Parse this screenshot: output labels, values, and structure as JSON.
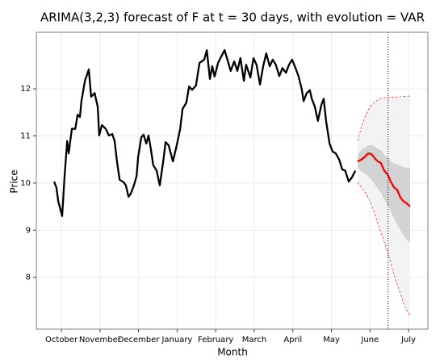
{
  "chart_data": {
    "type": "line",
    "title": "ARIMA(3,2,3) forecast of F at t = 30 days, with evolution = VAR",
    "xlabel": "Month",
    "ylabel": "Price",
    "xlim": [
      0.35,
      10.5
    ],
    "ylim": [
      6.9,
      13.2
    ],
    "xticks": [
      {
        "value": 1,
        "label": "October"
      },
      {
        "value": 2,
        "label": "November"
      },
      {
        "value": 3,
        "label": "December"
      },
      {
        "value": 4,
        "label": "January"
      },
      {
        "value": 5,
        "label": "February"
      },
      {
        "value": 6,
        "label": "March"
      },
      {
        "value": 7,
        "label": "April"
      },
      {
        "value": 8,
        "label": "May"
      },
      {
        "value": 9,
        "label": "June"
      },
      {
        "value": 10,
        "label": "July"
      }
    ],
    "yticks": [
      8,
      9,
      10,
      11,
      12
    ],
    "grid": true,
    "vline": 9.47,
    "series": [
      {
        "color": "#000000",
        "x": [
          0.81,
          0.87,
          0.92,
          1.02,
          1.08,
          1.15,
          1.19,
          1.27,
          1.36,
          1.42,
          1.48,
          1.52,
          1.61,
          1.71,
          1.77,
          1.86,
          1.94,
          1.98,
          2.05,
          2.15,
          2.23,
          2.32,
          2.38,
          2.44,
          2.51,
          2.61,
          2.67,
          2.74,
          2.8,
          2.88,
          2.95,
          2.99,
          3.07,
          3.13,
          3.2,
          3.26,
          3.32,
          3.38,
          3.47,
          3.55,
          3.64,
          3.7,
          3.78,
          3.89,
          3.99,
          4.08,
          4.14,
          4.24,
          4.31,
          4.39,
          4.49,
          4.58,
          4.7,
          4.77,
          4.85,
          4.91,
          4.97,
          5.06,
          5.14,
          5.23,
          5.31,
          5.39,
          5.48,
          5.56,
          5.64,
          5.73,
          5.79,
          5.9,
          5.98,
          6.06,
          6.15,
          6.23,
          6.31,
          6.4,
          6.48,
          6.56,
          6.65,
          6.73,
          6.82,
          6.9,
          6.98,
          7.07,
          7.15,
          7.23,
          7.28,
          7.36,
          7.44,
          7.49,
          7.57,
          7.65,
          7.74,
          7.8,
          7.86,
          7.95,
          8.03,
          8.11,
          8.2,
          8.28,
          8.36,
          8.45,
          8.53,
          8.62
        ],
        "values": [
          10.03,
          9.91,
          9.61,
          9.3,
          10.12,
          10.89,
          10.63,
          11.15,
          11.15,
          11.45,
          11.4,
          11.74,
          12.17,
          12.41,
          11.83,
          11.91,
          11.62,
          11.01,
          11.23,
          11.15,
          11.01,
          11.04,
          10.89,
          10.46,
          10.07,
          10.02,
          9.95,
          9.71,
          9.78,
          9.95,
          10.15,
          10.55,
          10.97,
          11.03,
          10.84,
          11.01,
          10.72,
          10.38,
          10.26,
          9.95,
          10.46,
          10.87,
          10.8,
          10.46,
          10.8,
          11.15,
          11.57,
          11.71,
          12.05,
          11.98,
          12.07,
          12.55,
          12.62,
          12.82,
          12.21,
          12.48,
          12.26,
          12.55,
          12.68,
          12.82,
          12.6,
          12.38,
          12.58,
          12.38,
          12.65,
          12.17,
          12.51,
          12.24,
          12.65,
          12.51,
          12.09,
          12.48,
          12.75,
          12.48,
          12.62,
          12.51,
          12.27,
          12.44,
          12.34,
          12.51,
          12.62,
          12.44,
          12.26,
          12.0,
          11.74,
          11.91,
          11.97,
          11.79,
          11.62,
          11.32,
          11.66,
          11.79,
          11.32,
          10.84,
          10.67,
          10.63,
          10.5,
          10.29,
          10.26,
          10.03,
          10.12,
          10.26
        ]
      },
      {
        "color": "#ff0000",
        "x": [
          8.68,
          8.78,
          8.87,
          8.95,
          9.03,
          9.12,
          9.2,
          9.28,
          9.37,
          9.45,
          9.54,
          9.62,
          9.7,
          9.79,
          9.87,
          9.95,
          10.04
        ],
        "values": [
          10.46,
          10.5,
          10.56,
          10.63,
          10.62,
          10.53,
          10.46,
          10.43,
          10.26,
          10.19,
          10.03,
          9.91,
          9.86,
          9.69,
          9.61,
          9.57,
          9.5
        ],
        "inner_lower": [
          10.32,
          10.25,
          10.2,
          10.15,
          10.08,
          9.98,
          9.88,
          9.8,
          9.65,
          9.55,
          9.4,
          9.25,
          9.12,
          9.0,
          8.88,
          8.8,
          8.74
        ],
        "inner_upper": [
          10.6,
          10.7,
          10.75,
          10.8,
          10.81,
          10.78,
          10.72,
          10.7,
          10.6,
          10.55,
          10.47,
          10.42,
          10.4,
          10.37,
          10.34,
          10.33,
          10.32
        ],
        "outer_lower": [
          10.02,
          9.9,
          9.8,
          9.7,
          9.55,
          9.35,
          9.15,
          8.95,
          8.75,
          8.55,
          8.3,
          8.05,
          7.85,
          7.65,
          7.45,
          7.3,
          7.2
        ],
        "outer_upper": [
          10.9,
          11.2,
          11.4,
          11.55,
          11.65,
          11.72,
          11.76,
          11.8,
          11.8,
          11.81,
          11.82,
          11.82,
          11.83,
          11.83,
          11.84,
          11.84,
          11.85
        ]
      }
    ]
  }
}
